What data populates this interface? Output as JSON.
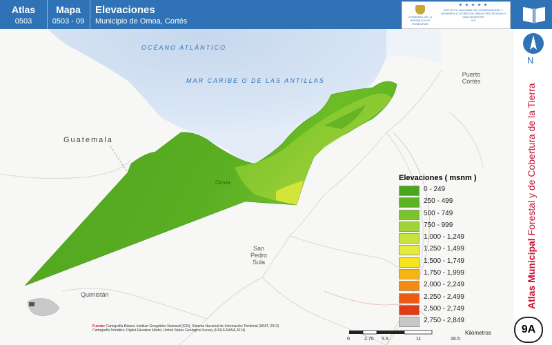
{
  "header": {
    "atlas_label": "Atlas",
    "atlas_number": "0503",
    "mapa_label": "Mapa",
    "mapa_number": "0503 - 09",
    "title": "Elevaciones",
    "subtitle": "Municipio de Omoa, Cortés"
  },
  "logos": {
    "left_text": "GOBIERNO DE LA REPÚBLICA DE HONDURAS",
    "stars": "★ ★ ★ ★ ★",
    "right_text": "INSTITUTO NACIONAL DE CONSERVACIÓN Y DESARROLLO FORESTAL ÁREAS PROTEGIDAS Y VIDA SILVESTRE",
    "right_abbrev": "ICF"
  },
  "map": {
    "ocean_label": "OCÉANO ATLÁNTICO",
    "sea_label": "MAR CARIBE O DE LAS ANTILLAS",
    "places": [
      {
        "name": "Guatemala",
        "kind": "country"
      },
      {
        "name": "Puerto Cortés",
        "kind": "city"
      },
      {
        "name": "San Pedro Sula",
        "kind": "city"
      },
      {
        "name": "Quimistán",
        "kind": "city"
      },
      {
        "name": "Omoa",
        "kind": "town"
      }
    ]
  },
  "legend": {
    "title": "Elevaciones ( msnm )",
    "items": [
      {
        "label": "0 - 249",
        "color": "#4ca51e"
      },
      {
        "label": "250 - 499",
        "color": "#5cb324"
      },
      {
        "label": "500 - 749",
        "color": "#79c42d"
      },
      {
        "label": "750 - 999",
        "color": "#9fd337"
      },
      {
        "label": "1,000 - 1,249",
        "color": "#c5e33c"
      },
      {
        "label": "1,250 - 1,499",
        "color": "#e4eb3a"
      },
      {
        "label": "1,500 - 1,749",
        "color": "#f5e41e"
      },
      {
        "label": "1,750 - 1,999",
        "color": "#f6b512"
      },
      {
        "label": "2,000 - 2,249",
        "color": "#f28b12"
      },
      {
        "label": "2,250 - 2,499",
        "color": "#ec5b14"
      },
      {
        "label": "2,500 - 2,749",
        "color": "#e33a17"
      },
      {
        "label": "2,750 - 2,849",
        "color": "#c8c8c8"
      }
    ]
  },
  "north_label": "N",
  "sidebar": {
    "title_bold": "Atlas Municipal",
    "title_rest": " Forestal y de Cobertura de la Tierra",
    "badge": "9A"
  },
  "source": {
    "label": "Fuente:",
    "line1": "Cartografía Básica: Instituto Geográfico Nacional (IGN), Sistema Nacional de Información Territorial (SINIT, 2013)",
    "line2": "Cartografía Temática: Digital Elevation Model, United States Geological Survey (USGS-NASA,2014)"
  },
  "scale": {
    "ticks": [
      {
        "label": "0",
        "pos": 0
      },
      {
        "label": "2.75",
        "pos": 2.75
      },
      {
        "label": "5.5",
        "pos": 5.5
      },
      {
        "label": "11",
        "pos": 11
      },
      {
        "label": "16.5",
        "pos": 16.5
      }
    ],
    "max": 16.5,
    "unit": "Kilómetros"
  }
}
